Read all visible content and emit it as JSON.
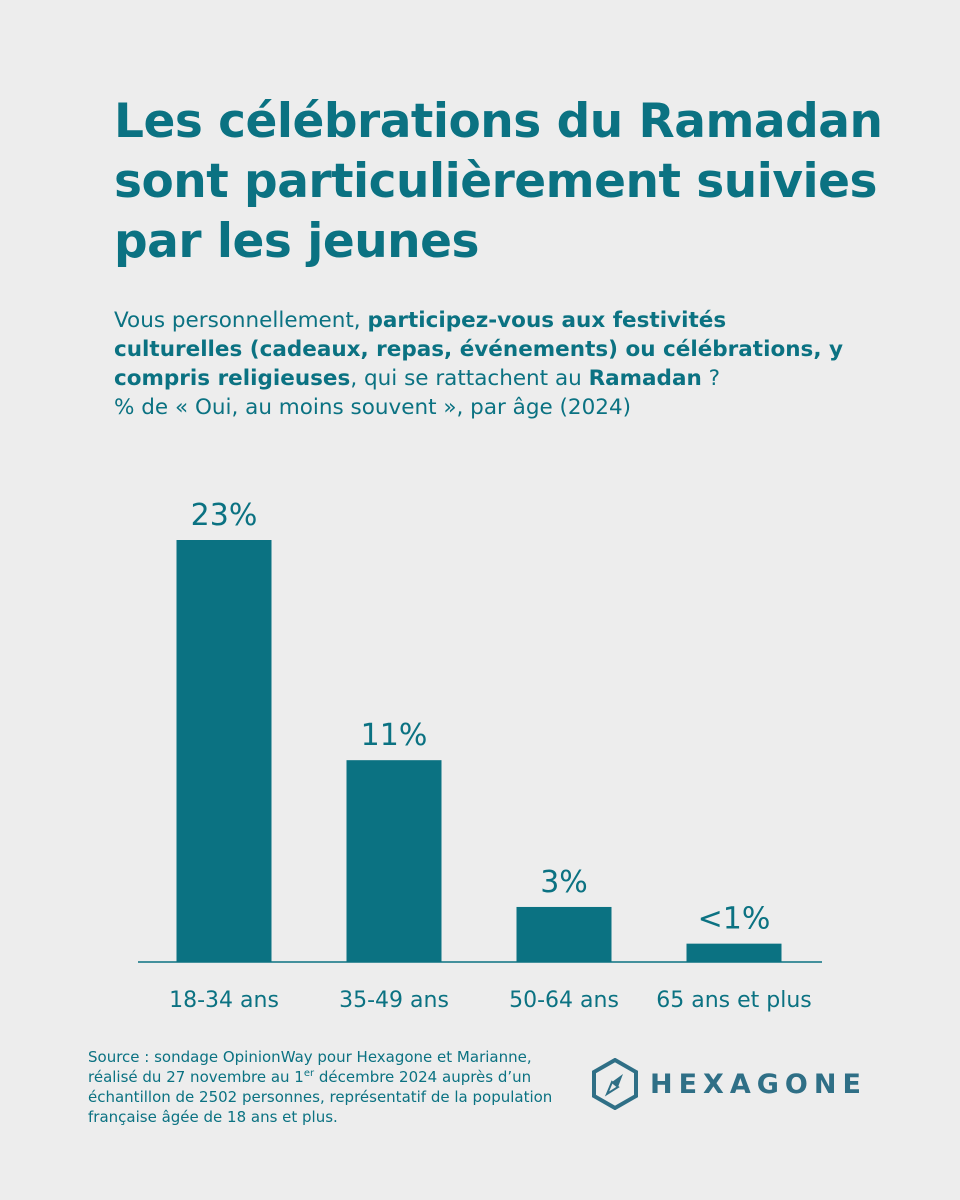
{
  "title": "Les célébrations du Ramadan sont particulièrement suivies par les jeunes",
  "question": {
    "part1": "Vous personnellement, ",
    "part2_bold": "participez-vous aux festivités culturelles (cadeaux, repas, événements) ou célébrations, y compris religieuses",
    "part3": ", qui se rattachent au ",
    "part4_bold": "Ramadan",
    "part5": " ?",
    "measure": "% de « Oui, au moins souvent », par âge (2024)"
  },
  "chart_data": {
    "type": "bar",
    "categories": [
      "18-34 ans",
      "35-49 ans",
      "50-64 ans",
      "65 ans et plus"
    ],
    "values": [
      23,
      11,
      3,
      1
    ],
    "value_labels": [
      "23%",
      "11%",
      "3%",
      "<1%"
    ],
    "ylim": [
      0,
      23
    ],
    "grid": false,
    "legend": "none",
    "colors": {
      "bar": "#0b7282",
      "axis": "#0b7282"
    }
  },
  "source": {
    "line1": "Source : sondage OpinionWay pour Hexagone et Marianne,",
    "line2_pre": "réalisé du 27 novembre au 1",
    "line2_sup": "er",
    "line2_post": " décembre 2024 auprès d’un",
    "line3": "échantillon de 2502 personnes, représentatif de la population",
    "line4": "française âgée de 18 ans et plus."
  },
  "logo": {
    "text": "HEXAGONE",
    "icon": "compass-hexagon-icon"
  }
}
